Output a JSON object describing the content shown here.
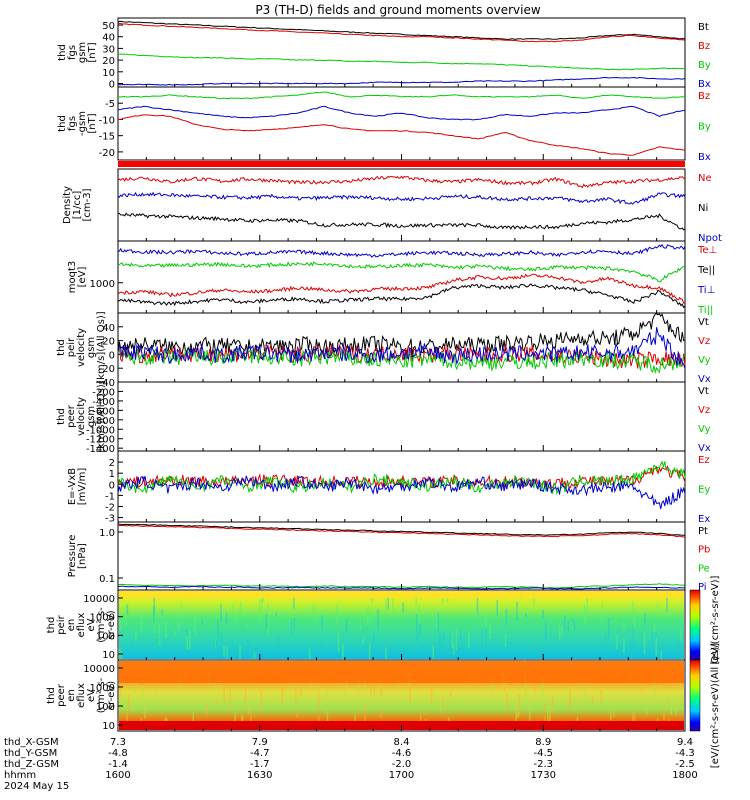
{
  "title": "P3 (TH-D) fields and ground moments overview",
  "colors": {
    "black": "#000000",
    "red": "#dd0000",
    "green": "#00cc00",
    "blue": "#0000cc"
  },
  "chart_data": [
    {
      "type": "line",
      "ylabel": [
        "thd",
        "fgs",
        "gsm",
        "[nT]"
      ],
      "yticks": [
        "50",
        "40",
        "30",
        "20",
        "10",
        "0"
      ],
      "ylim": [
        -3,
        56
      ],
      "series": [
        {
          "name": "Bt",
          "color": "black",
          "values": [
            53,
            52,
            51,
            50,
            49,
            48,
            47,
            46,
            45,
            44,
            43,
            42,
            41,
            40,
            39,
            38,
            38,
            38,
            39,
            41,
            42,
            40,
            38
          ]
        },
        {
          "name": "Bz",
          "color": "red",
          "values": [
            51,
            50,
            49,
            48,
            47,
            46,
            45,
            44,
            43,
            42,
            41,
            40,
            40,
            39,
            38,
            37,
            36,
            36,
            37,
            40,
            41,
            39,
            37
          ]
        },
        {
          "name": "By",
          "color": "green",
          "values": [
            25,
            24,
            23,
            22,
            22,
            21,
            21,
            20,
            20,
            19,
            19,
            18,
            18,
            17,
            17,
            16,
            15,
            14,
            13,
            12,
            12,
            13,
            13
          ]
        },
        {
          "name": "Bx",
          "color": "blue",
          "values": [
            -1,
            -1,
            -1,
            -1,
            0,
            0,
            0,
            0,
            0,
            0,
            1,
            1,
            1,
            1,
            2,
            2,
            2,
            3,
            4,
            5,
            5,
            4,
            4
          ]
        }
      ]
    },
    {
      "type": "line",
      "ylabel": [
        "thd",
        "fgs",
        "-gsm",
        "[nT]"
      ],
      "yticks": [
        "-5",
        "-10",
        "-15",
        "-20"
      ],
      "ylim": [
        -22.5,
        0
      ],
      "series": [
        {
          "name": "Bz",
          "color": "red",
          "values": [
            -10,
            -8.5,
            -9,
            -11.5,
            -13,
            -13.5,
            -13,
            -12.5,
            -11.5,
            -13,
            -13.5,
            -13.5,
            -14,
            -15,
            -16,
            -14,
            -16.5,
            -18,
            -19,
            -20.5,
            -21,
            -18.5,
            -19.5
          ]
        },
        {
          "name": "By",
          "color": "green",
          "values": [
            -3,
            -3,
            -2.5,
            -3,
            -3.5,
            -3.5,
            -3,
            -2.5,
            -1.5,
            -3,
            -2.5,
            -3,
            -3,
            -2.5,
            -3,
            -3,
            -3,
            -2.5,
            -3.5,
            -2.5,
            -3,
            -3.5,
            -3
          ]
        },
        {
          "name": "Bx",
          "color": "blue",
          "values": [
            -7,
            -6,
            -7,
            -8,
            -9,
            -9.5,
            -9,
            -8,
            -6,
            -8,
            -9,
            -8,
            -9.5,
            -10,
            -10,
            -8.5,
            -9,
            -8,
            -8,
            -7,
            -6,
            -9,
            -7
          ]
        }
      ]
    },
    {
      "type": "line",
      "ylabel": [
        "Density",
        "[1/cc]",
        "[cm-3]"
      ],
      "yticks": [],
      "ylim": [
        0,
        10
      ],
      "series": [
        {
          "name": "Ne",
          "color": "red",
          "values": [
            8.5,
            8.8,
            8.2,
            8.7,
            8.3,
            8.6,
            8.4,
            8.1,
            8.2,
            8.3,
            8.7,
            8.9,
            8.4,
            8.2,
            8.5,
            8.1,
            8.0,
            8.6,
            7.6,
            8.1,
            8.3,
            8.5,
            8.8
          ]
        },
        {
          "name": "Ni",
          "color": "black",
          "values": [
            3.7,
            3.5,
            3.4,
            3.2,
            3.1,
            2.8,
            2.9,
            2.8,
            2.2,
            2.3,
            2.3,
            2.1,
            2.2,
            2.2,
            2.2,
            1.8,
            2.0,
            1.9,
            2.5,
            2.6,
            3.0,
            3.5,
            1.5
          ]
        },
        {
          "name": "Npot",
          "color": "blue",
          "values": [
            6.3,
            6.5,
            6.4,
            6.2,
            6.1,
            6.0,
            6.2,
            5.9,
            6.0,
            6.1,
            6.0,
            5.8,
            5.9,
            6.2,
            6.1,
            5.8,
            5.9,
            6.0,
            5.5,
            5.8,
            5.2,
            6.5,
            6.2
          ]
        }
      ]
    },
    {
      "type": "line",
      "ylabel": [
        "moqt3",
        "[eV]"
      ],
      "yticks": [
        "1000"
      ],
      "ylim": [
        0,
        10
      ],
      "series": [
        {
          "name": "Te⊥",
          "color": "red",
          "values": [
            2.8,
            3.0,
            2.5,
            2.8,
            3.2,
            2.9,
            3.1,
            3.5,
            3.2,
            3.0,
            3.3,
            3.4,
            3.5,
            4.5,
            5.0,
            4.8,
            5.2,
            5.0,
            4.2,
            4.8,
            3.8,
            3.5,
            1.5
          ]
        },
        {
          "name": "Te||",
          "color": "black",
          "values": [
            1.8,
            1.5,
            1.3,
            1.6,
            1.9,
            1.5,
            1.8,
            2.0,
            1.6,
            1.8,
            2.0,
            1.9,
            2.2,
            3.5,
            3.8,
            3.5,
            3.9,
            3.5,
            3.2,
            2.5,
            1.5,
            3.0,
            0.8
          ]
        },
        {
          "name": "Ti⊥",
          "color": "blue",
          "values": [
            8.7,
            8.5,
            8.4,
            8.6,
            8.3,
            8.2,
            8.4,
            8.5,
            8.3,
            8.1,
            8.0,
            8.2,
            8.4,
            8.3,
            8.1,
            8.2,
            8.4,
            8.0,
            8.5,
            8.6,
            8.2,
            9.3,
            9.0
          ]
        },
        {
          "name": "Ti||",
          "color": "green",
          "values": [
            6.8,
            6.5,
            6.6,
            6.7,
            6.8,
            6.5,
            6.7,
            6.8,
            6.9,
            6.5,
            6.4,
            6.6,
            6.7,
            6.3,
            6.5,
            6.2,
            6.0,
            6.4,
            6.3,
            6.2,
            5.8,
            4.5,
            6.5
          ]
        }
      ]
    },
    {
      "type": "line",
      "ylabel": [
        "thd",
        "peir",
        "velocity",
        "gsm",
        "[km/s](All Qs)]"
      ],
      "yticks": [
        "40",
        "20",
        "0",
        "-20",
        "-40"
      ],
      "ylim": [
        -40,
        60
      ],
      "series": [
        {
          "name": "Vt",
          "color": "black",
          "values": [
            12,
            14,
            11,
            13,
            12,
            10,
            12,
            14,
            11,
            13,
            15,
            12,
            11,
            14,
            13,
            16,
            18,
            20,
            25,
            22,
            30,
            55,
            20
          ]
        },
        {
          "name": "Vz",
          "color": "red",
          "values": [
            3,
            -2,
            4,
            -3,
            2,
            0,
            3,
            -1,
            2,
            1,
            0,
            2,
            -1,
            2,
            -3,
            1,
            0,
            -2,
            -3,
            -8,
            -10,
            -5,
            -10
          ]
        },
        {
          "name": "Vy",
          "color": "green",
          "values": [
            -5,
            -3,
            -6,
            -4,
            -5,
            -2,
            -5,
            -7,
            -4,
            -6,
            -8,
            -10,
            -7,
            -9,
            -12,
            -10,
            -11,
            -9,
            -5,
            -8,
            -10,
            -15,
            -8
          ]
        },
        {
          "name": "Vx",
          "color": "blue",
          "values": [
            2,
            5,
            -3,
            4,
            -2,
            3,
            1,
            -2,
            3,
            0,
            -1,
            2,
            3,
            -2,
            1,
            0,
            2,
            -1,
            3,
            2,
            5,
            30,
            -20
          ]
        }
      ]
    },
    {
      "type": "line",
      "ylabel": [
        "thd",
        "peer",
        "velocity",
        "gsm",
        "[km/s](All Qs)]"
      ],
      "yticks": [
        "-200",
        "-400",
        "-600",
        "-800",
        "-1000",
        "-1200",
        "-1400"
      ],
      "ylim": [
        -1460,
        0
      ],
      "series": [
        {
          "name": "Vt",
          "color": "black",
          "values": []
        },
        {
          "name": "Vz",
          "color": "red",
          "values": []
        },
        {
          "name": "Vy",
          "color": "green",
          "values": []
        },
        {
          "name": "Vx",
          "color": "blue",
          "values": []
        }
      ]
    },
    {
      "type": "line",
      "ylabel": [
        "E=-VxB",
        "[mV/m]"
      ],
      "yticks": [
        "2",
        "1",
        "0",
        "-1",
        "-2",
        "-3"
      ],
      "ylim": [
        -3.4,
        3.0
      ],
      "series": [
        {
          "name": "Ez",
          "color": "red",
          "values": [
            0.3,
            0.2,
            0.4,
            0.3,
            0.2,
            0.3,
            0.4,
            0.3,
            0.2,
            0.3,
            0.2,
            0.3,
            0.2,
            0.3,
            0.2,
            0.3,
            0.2,
            0.1,
            0.3,
            0.2,
            0.4,
            1.5,
            0.5
          ]
        },
        {
          "name": "Ey",
          "color": "green",
          "values": [
            0.2,
            -0.5,
            0.5,
            -0.3,
            0.4,
            -0.2,
            0.3,
            -0.4,
            0.2,
            -0.3,
            0.5,
            0.2,
            -0.2,
            0.3,
            -0.3,
            0.2,
            0.3,
            -0.5,
            0.4,
            0.2,
            0.5,
            1.8,
            0.8
          ]
        },
        {
          "name": "Ex",
          "color": "blue",
          "values": [
            -0.3,
            0.3,
            -0.5,
            0.2,
            -0.3,
            0.4,
            -0.2,
            0.3,
            -0.3,
            0.2,
            -0.4,
            -0.2,
            0.3,
            -0.3,
            0.2,
            -0.2,
            0.1,
            -0.4,
            -0.5,
            -0.3,
            -0.2,
            -2.0,
            -0.5
          ]
        }
      ]
    },
    {
      "type": "line",
      "ylabel": [
        "Pressure",
        "[nPa]"
      ],
      "yticks": [
        "1.0",
        "0.1"
      ],
      "ylim": [
        0,
        10
      ],
      "series": [
        {
          "name": "Pt",
          "color": "black",
          "values": [
            9.7,
            9.6,
            9.5,
            9.4,
            9.3,
            9.2,
            9.1,
            9.0,
            8.9,
            8.8,
            8.7,
            8.6,
            8.5,
            8.4,
            8.3,
            8.2,
            8.1,
            8.1,
            8.2,
            8.4,
            8.5,
            8.3,
            8.0
          ]
        },
        {
          "name": "Pb",
          "color": "red",
          "values": [
            9.5,
            9.4,
            9.3,
            9.2,
            9.1,
            9.0,
            8.9,
            8.8,
            8.7,
            8.6,
            8.5,
            8.4,
            8.3,
            8.2,
            8.1,
            8.0,
            7.9,
            7.9,
            8.0,
            8.2,
            8.3,
            8.1,
            7.8
          ]
        },
        {
          "name": "Pe",
          "color": "green",
          "values": [
            0.8,
            0.7,
            0.7,
            0.6,
            0.7,
            0.6,
            0.6,
            0.5,
            0.6,
            0.5,
            0.5,
            0.4,
            0.5,
            0.4,
            0.4,
            0.5,
            0.4,
            0.3,
            0.5,
            0.6,
            0.8,
            0.9,
            0.7
          ]
        },
        {
          "name": "Pi",
          "color": "blue",
          "values": [
            0.5,
            0.5,
            0.4,
            0.5,
            0.4,
            0.4,
            0.3,
            0.4,
            0.3,
            0.3,
            0.3,
            0.2,
            0.3,
            0.3,
            0.2,
            0.2,
            0.3,
            0.2,
            0.2,
            0.3,
            0.4,
            0.4,
            0.3
          ]
        }
      ]
    },
    {
      "type": "heatmap",
      "ylabel": [
        "thd",
        "peir",
        "en",
        "eflux",
        "eV",
        "(cm²-s-",
        "sr-eV)"
      ],
      "yticks": [
        "10000",
        "1000",
        "100",
        "10"
      ],
      "colorbar_label": "[eV/(cm²-s-sr-eV)]"
    },
    {
      "type": "heatmap",
      "ylabel": [
        "thd",
        "peer",
        "en",
        "eflux",
        "eV",
        "(cm²-s-",
        "sr-eV)"
      ],
      "yticks": [
        "10000",
        "1000",
        "100",
        "10"
      ],
      "colorbar_label": "[eV/(cm²-s-sr-eV)(All Qs)]"
    }
  ],
  "xaxis": {
    "rows": [
      {
        "label": "thd_X-GSM",
        "values": [
          "7.3",
          "7.9",
          "8.4",
          "8.9",
          "9.4"
        ]
      },
      {
        "label": "thd_Y-GSM",
        "values": [
          "-4.8",
          "-4.7",
          "-4.6",
          "-4.5",
          "-4.3"
        ]
      },
      {
        "label": "thd_Z-GSM",
        "values": [
          "-1.4",
          "-1.7",
          "-2.0",
          "-2.3",
          "-2.5"
        ]
      },
      {
        "label": "hhmm",
        "values": [
          "1600",
          "1630",
          "1700",
          "1730",
          "1800"
        ]
      }
    ],
    "date": "2024 May 15"
  }
}
